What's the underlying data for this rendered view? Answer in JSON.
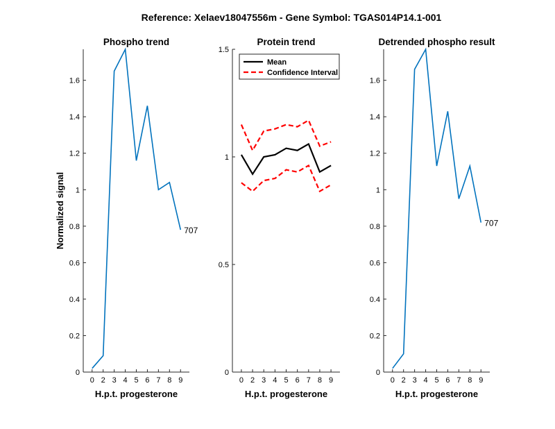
{
  "figure_title": "Reference:  Xelaev18047556m - Gene Symbol:  TGAS014P14.1-001",
  "colors": {
    "phospho_line": "#0072BD",
    "mean_line": "#000000",
    "ci_line": "#FF0000",
    "axes": "#262626"
  },
  "chart_data": [
    {
      "type": "line",
      "title": "Phospho trend",
      "xlabel": "H.p.t. progesterone",
      "ylabel": "Normalized signal",
      "categories": [
        "0",
        "2",
        "3",
        "4",
        "5",
        "6",
        "7",
        "8",
        "9"
      ],
      "yticks": [
        "0",
        "0.2",
        "0.4",
        "0.6",
        "0.8",
        "1",
        "1.2",
        "1.4",
        "1.6"
      ],
      "ylim": [
        0,
        1.77
      ],
      "series": [
        {
          "values": [
            0.02,
            0.09,
            1.65,
            1.77,
            1.16,
            1.46,
            1.0,
            1.04,
            0.78
          ]
        }
      ],
      "annotation": "707"
    },
    {
      "type": "line",
      "title": "Protein trend",
      "xlabel": "H.p.t. progesterone",
      "ylabel": "",
      "categories": [
        "0",
        "2",
        "3",
        "4",
        "5",
        "6",
        "7",
        "8",
        "9"
      ],
      "yticks": [
        "0",
        "0.5",
        "1",
        "1.5"
      ],
      "ylim": [
        0,
        1.5
      ],
      "legend_position": "top-left",
      "series": [
        {
          "name": "Mean",
          "style": "solid",
          "values": [
            1.01,
            0.92,
            1.0,
            1.01,
            1.04,
            1.03,
            1.06,
            0.93,
            0.96
          ]
        },
        {
          "name": "Confidence Interval",
          "style": "dashed",
          "values": [
            1.15,
            1.03,
            1.12,
            1.13,
            1.15,
            1.14,
            1.17,
            1.05,
            1.07
          ]
        },
        {
          "name": "",
          "style": "dashed",
          "values": [
            0.88,
            0.84,
            0.89,
            0.9,
            0.94,
            0.93,
            0.96,
            0.84,
            0.87
          ]
        }
      ]
    },
    {
      "type": "line",
      "title": "Detrended phospho result",
      "xlabel": "H.p.t. progesterone",
      "ylabel": "",
      "categories": [
        "0",
        "2",
        "3",
        "4",
        "5",
        "6",
        "7",
        "8",
        "9"
      ],
      "yticks": [
        "0",
        "0.2",
        "0.4",
        "0.6",
        "0.8",
        "1",
        "1.2",
        "1.4",
        "1.6"
      ],
      "ylim": [
        0,
        1.77
      ],
      "series": [
        {
          "values": [
            0.02,
            0.1,
            1.66,
            1.77,
            1.13,
            1.43,
            0.95,
            1.13,
            0.82
          ]
        }
      ],
      "annotation": "707"
    }
  ]
}
